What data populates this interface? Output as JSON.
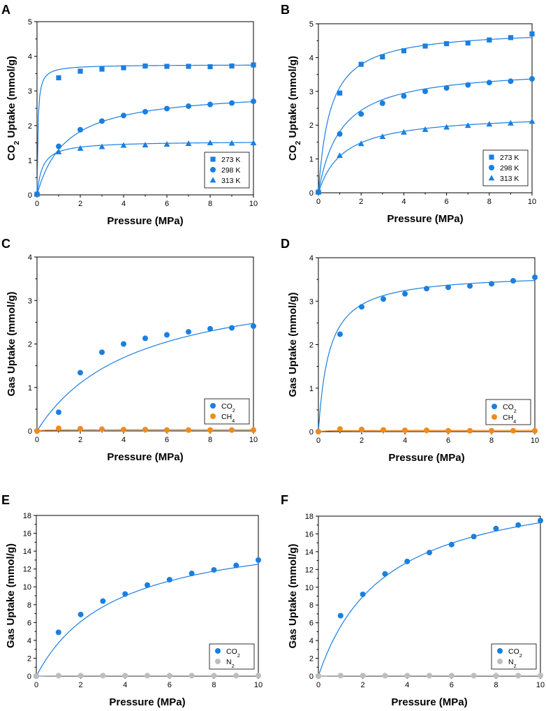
{
  "figure": {
    "colors": {
      "co2": "#1a7fe0",
      "ch4": "#f08a1c",
      "n2": "#bdbdbd",
      "axis": "#000000"
    }
  },
  "chart_data": [
    {
      "panel": "A",
      "type": "scatter",
      "xlabel": "Pressure (MPa)",
      "ylabel_parts": [
        "CO",
        "2",
        " Uptake (mmol/g)"
      ],
      "xlim": [
        0,
        10
      ],
      "ylim": [
        0,
        5
      ],
      "xticks": [
        0,
        2,
        4,
        6,
        8,
        10
      ],
      "yticks": [
        0,
        1,
        2,
        3,
        4,
        5
      ],
      "legend_position": "bottom-right",
      "series": [
        {
          "name": "273 K",
          "label_parts": [
            "273 K"
          ],
          "marker": "square",
          "color": "#1a7fe0",
          "x": [
            0,
            1,
            2,
            3,
            4,
            5,
            6,
            7,
            8,
            9,
            10
          ],
          "y": [
            0.02,
            3.38,
            3.57,
            3.63,
            3.67,
            3.72,
            3.71,
            3.71,
            3.7,
            3.72,
            3.75
          ],
          "fit": {
            "qmax": 3.76,
            "b": 25
          }
        },
        {
          "name": "298 K",
          "label_parts": [
            "298 K"
          ],
          "marker": "circle",
          "color": "#1a7fe0",
          "x": [
            0,
            1,
            2,
            3,
            4,
            5,
            6,
            7,
            8,
            9,
            10
          ],
          "y": [
            0.02,
            1.4,
            1.88,
            2.13,
            2.29,
            2.4,
            2.49,
            2.56,
            2.61,
            2.65,
            2.7
          ],
          "fit": {
            "qmax": 3.05,
            "b": 0.75
          }
        },
        {
          "name": "313 K",
          "label_parts": [
            "313 K"
          ],
          "marker": "triangle",
          "color": "#1a7fe0",
          "x": [
            0,
            1,
            2,
            3,
            4,
            5,
            6,
            7,
            8,
            9,
            10
          ],
          "y": [
            0.02,
            1.24,
            1.34,
            1.39,
            1.43,
            1.44,
            1.46,
            1.48,
            1.5,
            1.49,
            1.5
          ],
          "fit": {
            "qmax": 1.55,
            "b": 4.0
          }
        }
      ]
    },
    {
      "panel": "B",
      "type": "scatter",
      "xlabel": "Pressure (MPa)",
      "ylabel_parts": [
        "CO",
        "2",
        " Uptake (mmol/g)"
      ],
      "xlim": [
        0,
        10
      ],
      "ylim": [
        0,
        5
      ],
      "xticks": [
        0,
        2,
        4,
        6,
        8,
        10
      ],
      "yticks": [
        0,
        1,
        2,
        3,
        4,
        5
      ],
      "legend_position": "bottom-right",
      "series": [
        {
          "name": "273 K",
          "label_parts": [
            "273 K"
          ],
          "marker": "square",
          "color": "#1a7fe0",
          "x": [
            0,
            1,
            2,
            3,
            4,
            5,
            6,
            7,
            8,
            9,
            10
          ],
          "y": [
            0.02,
            2.95,
            3.8,
            4.02,
            4.2,
            4.34,
            4.41,
            4.43,
            4.52,
            4.59,
            4.7
          ],
          "fit": {
            "qmax": 4.85,
            "b": 1.8
          }
        },
        {
          "name": "298 K",
          "label_parts": [
            "298 K"
          ],
          "marker": "circle",
          "color": "#1a7fe0",
          "x": [
            0,
            1,
            2,
            3,
            4,
            5,
            6,
            7,
            8,
            9,
            10
          ],
          "y": [
            0.02,
            1.74,
            2.33,
            2.65,
            2.86,
            3.0,
            3.1,
            3.19,
            3.26,
            3.3,
            3.37
          ],
          "fit": {
            "qmax": 3.72,
            "b": 0.95
          }
        },
        {
          "name": "313 K",
          "label_parts": [
            "313 K"
          ],
          "marker": "triangle",
          "color": "#1a7fe0",
          "x": [
            0,
            1,
            2,
            3,
            4,
            5,
            6,
            7,
            8,
            9,
            10
          ],
          "y": [
            0.02,
            1.1,
            1.45,
            1.66,
            1.79,
            1.87,
            1.94,
            1.99,
            2.03,
            2.06,
            2.11
          ],
          "fit": {
            "qmax": 2.35,
            "b": 0.85
          }
        }
      ]
    },
    {
      "panel": "C",
      "type": "scatter",
      "xlabel": "Pressure (MPa)",
      "ylabel_parts": [
        "Gas Uptake (mmol/g)"
      ],
      "xlim": [
        0,
        10
      ],
      "ylim": [
        0,
        4
      ],
      "xticks": [
        0,
        2,
        4,
        6,
        8,
        10
      ],
      "yticks": [
        0,
        1,
        2,
        3,
        4
      ],
      "legend_position": "bottom-right",
      "series": [
        {
          "name": "CO2",
          "label_parts": [
            "CO",
            "2"
          ],
          "marker": "circle",
          "color": "#1a7fe0",
          "x": [
            0,
            1,
            2,
            3,
            4,
            5,
            6,
            7,
            8,
            9,
            10
          ],
          "y": [
            0.0,
            0.43,
            1.34,
            1.81,
            2.0,
            2.13,
            2.21,
            2.28,
            2.35,
            2.37,
            2.41
          ],
          "fit": {
            "qmax": 3.6,
            "b": 0.22
          }
        },
        {
          "name": "CH4",
          "label_parts": [
            "CH",
            "4"
          ],
          "marker": "circle",
          "color": "#f08a1c",
          "x": [
            0,
            1,
            2,
            3,
            4,
            5,
            6,
            7,
            8,
            9,
            10
          ],
          "y": [
            0.0,
            0.06,
            0.05,
            0.04,
            0.03,
            0.03,
            0.02,
            0.02,
            0.02,
            0.02,
            0.02
          ],
          "fit": {
            "qmax": 0.03,
            "b": 3.0
          }
        }
      ]
    },
    {
      "panel": "D",
      "type": "scatter",
      "xlabel": "Pressure (MPa)",
      "ylabel_parts": [
        "Gas Uptake (mmol/g)"
      ],
      "xlim": [
        0,
        10
      ],
      "ylim": [
        0,
        4
      ],
      "xticks": [
        0,
        2,
        4,
        6,
        8,
        10
      ],
      "yticks": [
        0,
        1,
        2,
        3,
        4
      ],
      "legend_position": "bottom-right",
      "series": [
        {
          "name": "CO2",
          "label_parts": [
            "CO",
            "2"
          ],
          "marker": "circle",
          "color": "#1a7fe0",
          "x": [
            0,
            1,
            2,
            3,
            4,
            5,
            6,
            7,
            8,
            9,
            10
          ],
          "y": [
            0.0,
            2.24,
            2.87,
            3.05,
            3.17,
            3.29,
            3.32,
            3.35,
            3.4,
            3.47,
            3.55
          ],
          "fit": {
            "qmax": 3.65,
            "b": 2.0
          }
        },
        {
          "name": "CH4",
          "label_parts": [
            "CH",
            "4"
          ],
          "marker": "circle",
          "color": "#f08a1c",
          "x": [
            0,
            1,
            2,
            3,
            4,
            5,
            6,
            7,
            8,
            9,
            10
          ],
          "y": [
            0.0,
            0.06,
            0.05,
            0.04,
            0.03,
            0.03,
            0.02,
            0.02,
            0.02,
            0.02,
            0.02
          ],
          "fit": {
            "qmax": 0.03,
            "b": 3.0
          }
        }
      ]
    },
    {
      "panel": "E",
      "type": "scatter",
      "xlabel": "Pressure (MPa)",
      "ylabel_parts": [
        "Gas Uptake (mmol/g)"
      ],
      "xlim": [
        0,
        10
      ],
      "ylim": [
        0,
        18
      ],
      "xticks": [
        0,
        2,
        4,
        6,
        8,
        10
      ],
      "yticks": [
        0,
        2,
        4,
        6,
        8,
        10,
        12,
        14,
        16,
        18
      ],
      "legend_position": "bottom-right",
      "series": [
        {
          "name": "CO2",
          "label_parts": [
            "CO",
            "2"
          ],
          "marker": "circle",
          "color": "#1a7fe0",
          "x": [
            0,
            1,
            2,
            3,
            4,
            5,
            6,
            7,
            8,
            9,
            10
          ],
          "y": [
            0.0,
            4.9,
            6.9,
            8.4,
            9.2,
            10.2,
            10.8,
            11.5,
            11.9,
            12.4,
            13.0
          ],
          "fit": {
            "qmax": 17.0,
            "b": 0.28
          }
        },
        {
          "name": "N2",
          "label_parts": [
            "N",
            "2"
          ],
          "marker": "circle",
          "color": "#bdbdbd",
          "x": [
            0,
            1,
            2,
            3,
            4,
            5,
            6,
            7,
            8,
            9,
            10
          ],
          "y": [
            0.0,
            0.05,
            0.05,
            0.05,
            0.05,
            0.05,
            0.05,
            0.05,
            0.05,
            0.05,
            0.05
          ],
          "fit": {
            "qmax": 0.05,
            "b": 5.0
          }
        }
      ]
    },
    {
      "panel": "F",
      "type": "scatter",
      "xlabel": "Pressure (MPa)",
      "ylabel_parts": [
        "Gas Uptake (mmol/g)"
      ],
      "xlim": [
        0,
        10
      ],
      "ylim": [
        0,
        18
      ],
      "xticks": [
        0,
        2,
        4,
        6,
        8,
        10
      ],
      "yticks": [
        0,
        2,
        4,
        6,
        8,
        10,
        12,
        14,
        16,
        18
      ],
      "legend_position": "bottom-right",
      "series": [
        {
          "name": "CO2",
          "label_parts": [
            "CO",
            "2"
          ],
          "marker": "circle",
          "color": "#1a7fe0",
          "x": [
            0,
            1,
            2,
            3,
            4,
            5,
            6,
            7,
            8,
            9,
            10
          ],
          "y": [
            0.0,
            6.8,
            9.2,
            11.5,
            12.9,
            13.9,
            14.8,
            15.7,
            16.6,
            17.0,
            17.5
          ],
          "fit": {
            "qmax": 22.5,
            "b": 0.33
          }
        },
        {
          "name": "N2",
          "label_parts": [
            "N",
            "2"
          ],
          "marker": "circle",
          "color": "#bdbdbd",
          "x": [
            0,
            1,
            2,
            3,
            4,
            5,
            6,
            7,
            8,
            9,
            10
          ],
          "y": [
            0.0,
            0.05,
            0.05,
            0.05,
            0.05,
            0.05,
            0.05,
            0.05,
            0.05,
            0.05,
            0.05
          ],
          "fit": {
            "qmax": 0.05,
            "b": 5.0
          }
        }
      ]
    }
  ]
}
